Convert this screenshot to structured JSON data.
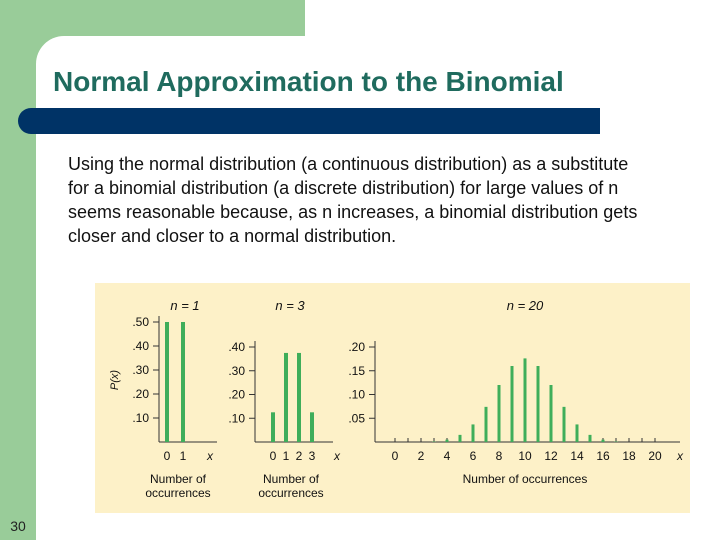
{
  "slide": {
    "title": "Normal Approximation to the Binomial",
    "body": "Using the normal distribution (a continuous distribution) as a substitute for a binomial distribution (a discrete distribution) for large values of n seems reasonable because, as n increases, a binomial distribution gets closer and closer to a normal distribution.",
    "page_number": "30"
  },
  "colors": {
    "bar": "#3fae5a",
    "title": "#1f6b5e",
    "title_bar": "#003366",
    "accent_green": "#99cc99",
    "chart_bg": "#fdf1c8"
  },
  "chart_data": [
    {
      "type": "bar",
      "title": "n = 1",
      "ylabel": "P(x)",
      "xlabel": "Number of occurrences",
      "x": [
        0,
        1
      ],
      "values": [
        0.5,
        0.5
      ],
      "x_ticks": [
        "0",
        "1"
      ],
      "y_ticks": [
        ".50",
        ".40",
        ".30",
        ".20",
        ".10"
      ],
      "ylim": [
        0,
        0.5
      ]
    },
    {
      "type": "bar",
      "title": "n = 3",
      "xlabel": "Number of occurrences",
      "x": [
        0,
        1,
        2,
        3
      ],
      "values": [
        0.125,
        0.375,
        0.375,
        0.125
      ],
      "x_ticks": [
        "0",
        "1",
        "2",
        "3"
      ],
      "y_ticks": [
        ".40",
        ".30",
        ".20",
        ".10"
      ],
      "ylim": [
        0,
        0.4
      ]
    },
    {
      "type": "bar",
      "title": "n = 20",
      "xlabel": "Number of occurrences",
      "x": [
        0,
        1,
        2,
        3,
        4,
        5,
        6,
        7,
        8,
        9,
        10,
        11,
        12,
        13,
        14,
        15,
        16,
        17,
        18,
        19,
        20
      ],
      "values": [
        0,
        0,
        0,
        0.001,
        0.005,
        0.015,
        0.037,
        0.074,
        0.12,
        0.16,
        0.176,
        0.16,
        0.12,
        0.074,
        0.037,
        0.015,
        0.005,
        0.001,
        0,
        0,
        0
      ],
      "x_ticks": [
        "0",
        "2",
        "4",
        "6",
        "8",
        "10",
        "12",
        "14",
        "16",
        "18",
        "20"
      ],
      "y_ticks": [
        ".20",
        ".15",
        ".10",
        ".05"
      ],
      "ylim": [
        0,
        0.2
      ]
    }
  ],
  "axis_symbol": "x"
}
